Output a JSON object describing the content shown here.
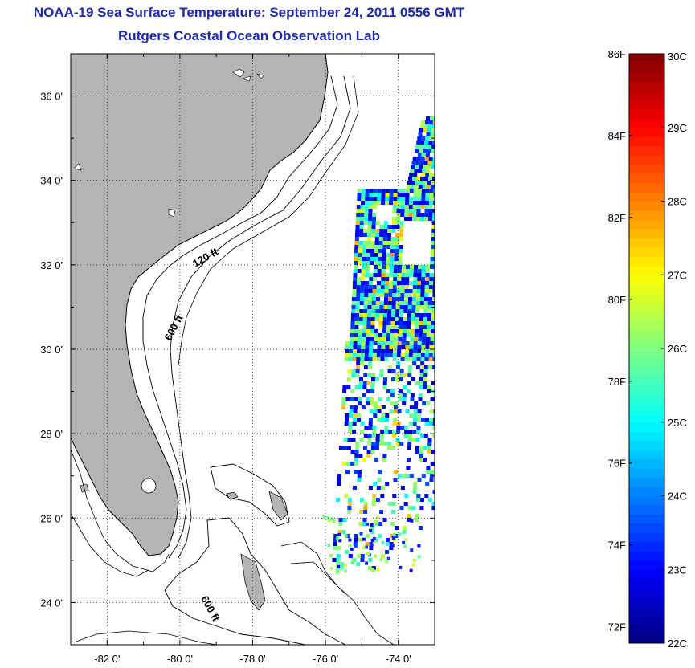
{
  "title": "NOAA-19 Sea Surface Temperature:  September 24, 2011 0556 GMT",
  "subtitle": "Rutgers Coastal Ocean Observation Lab",
  "map": {
    "lon_ticks": [
      -82,
      -80,
      -78,
      -76,
      -74
    ],
    "lon_labels": [
      "-82 0'",
      "-80 0'",
      "-78 0'",
      "-76 0'",
      "-74 0'"
    ],
    "lat_ticks": [
      36,
      34,
      32,
      30,
      28,
      26,
      24
    ],
    "lat_labels": [
      "36 0'",
      "34 0'",
      "32 0'",
      "30 0'",
      "28 0'",
      "26 0'",
      "24 0'"
    ],
    "extent": {
      "lon_min": -83.0,
      "lon_max": -73.0,
      "lat_min": 23.0,
      "lat_max": 37.0
    },
    "contour_labels": [
      "120 ft",
      "600 ft",
      "600 ft"
    ],
    "land_color": "#b4b4b4",
    "grid": "dotted"
  },
  "colorbar": {
    "unit_left": "F",
    "unit_right": "C",
    "f_labels": [
      "86F",
      "84F",
      "82F",
      "80F",
      "78F",
      "76F",
      "74F",
      "72F"
    ],
    "c_labels": [
      "30C",
      "29C",
      "28C",
      "27C",
      "26C",
      "25C",
      "24C",
      "23C",
      "22C"
    ],
    "range_c": [
      22,
      30
    ],
    "colormap": "jet"
  }
}
